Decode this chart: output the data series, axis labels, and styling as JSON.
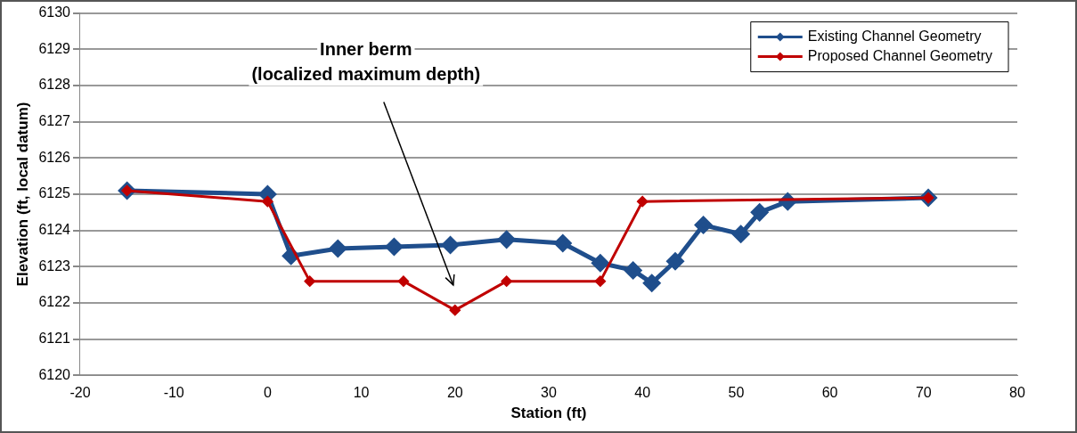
{
  "chart_data": {
    "type": "line",
    "xlabel": "Station (ft)",
    "ylabel": "Elevation (ft, local datum)",
    "xlim": [
      -20,
      80
    ],
    "xticks": [
      -20,
      -10,
      0,
      10,
      20,
      30,
      40,
      50,
      60,
      70,
      80
    ],
    "ylim": [
      6120,
      6130
    ],
    "yticks": [
      6120,
      6121,
      6122,
      6123,
      6124,
      6125,
      6126,
      6127,
      6128,
      6129,
      6130
    ],
    "grid": "y",
    "legend": "top right",
    "marker": "diamond",
    "line_style": "solid",
    "series": [
      {
        "name": "Existing Channel Geometry",
        "color": "#1f4e8c",
        "x": [
          -15,
          0,
          2.5,
          7.5,
          13.5,
          19.5,
          25.5,
          31.5,
          35.5,
          39,
          41,
          43.5,
          46.5,
          50.5,
          52.5,
          55.5,
          70.5
        ],
        "values": [
          6125.1,
          6125,
          6123.3,
          6123.5,
          6123.55,
          6123.6,
          6123.75,
          6123.65,
          6123.1,
          6122.9,
          6122.55,
          6123.15,
          6124.15,
          6123.9,
          6124.5,
          6124.8,
          6124.9
        ]
      },
      {
        "name": "Proposed Channel Geometry",
        "color": "#c00000",
        "x": [
          -15,
          0,
          4.5,
          14.5,
          20,
          25.5,
          35.5,
          40,
          70.5
        ],
        "values": [
          6125.1,
          6124.8,
          6122.6,
          6122.6,
          6121.8,
          6122.6,
          6122.6,
          6124.8,
          6124.9
        ]
      }
    ],
    "annotations": [
      "Inner berm\n(localized maximum depth)"
    ]
  }
}
